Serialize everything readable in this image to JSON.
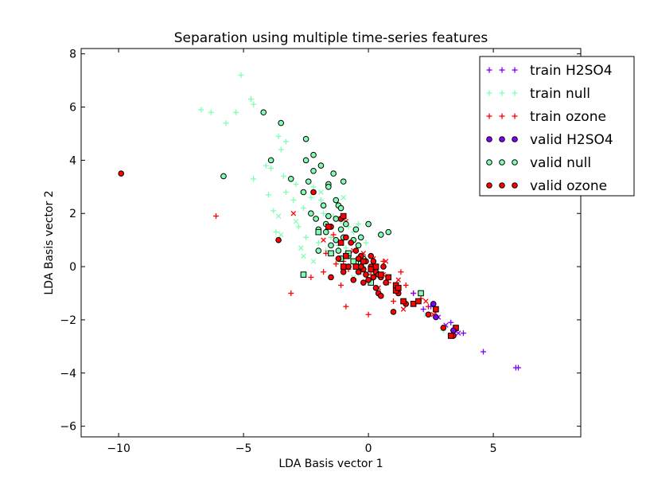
{
  "chart_data": {
    "type": "scatter",
    "title": "Separation using multiple time-series features",
    "xlabel": "LDA Basis vector 1",
    "ylabel": "LDA Basis vector 2",
    "xlim": [
      -11.5,
      8.5
    ],
    "ylim": [
      -6.4,
      8.2
    ],
    "xticks": [
      -10,
      -5,
      0,
      5
    ],
    "xtick_labels": [
      "−10",
      "−5",
      "0",
      "5"
    ],
    "yticks": [
      -6,
      -4,
      -2,
      0,
      2,
      4,
      6,
      8
    ],
    "ytick_labels": [
      "−6",
      "−4",
      "−2",
      "0",
      "2",
      "4",
      "6",
      "8"
    ],
    "grid": false,
    "legend_position": "top-right",
    "colors": {
      "h2so4": "#7f00ff",
      "null": "#80ffb4",
      "ozone": "#ff0000"
    },
    "legend": [
      {
        "label": "train H2SO4",
        "marker": "plus",
        "color": "#7f00ff"
      },
      {
        "label": "train null",
        "marker": "plus",
        "color": "#80ffb4"
      },
      {
        "label": "train ozone",
        "marker": "plus",
        "color": "#ff0000"
      },
      {
        "label": "valid H2SO4",
        "marker": "circle",
        "color": "#7f00ff"
      },
      {
        "label": "valid null",
        "marker": "circle",
        "color": "#80ffb4"
      },
      {
        "label": "valid ozone",
        "marker": "circle",
        "color": "#ff0000"
      }
    ],
    "series": [
      {
        "name": "train null",
        "marker": "plus",
        "color": "#80ffb4",
        "points": [
          [
            -5.1,
            7.2
          ],
          [
            -4.7,
            6.3
          ],
          [
            -4.6,
            6.1
          ],
          [
            -6.7,
            5.9
          ],
          [
            -6.3,
            5.8
          ],
          [
            -5.3,
            5.8
          ],
          [
            -5.7,
            5.4
          ],
          [
            -3.6,
            4.9
          ],
          [
            -3.3,
            4.7
          ],
          [
            -3.5,
            4.4
          ],
          [
            -4.1,
            3.8
          ],
          [
            -3.9,
            3.7
          ],
          [
            -4.6,
            3.3
          ],
          [
            -3.4,
            3.4
          ],
          [
            -2.9,
            3.1
          ],
          [
            -2.2,
            3.0
          ],
          [
            -3.0,
            2.5
          ],
          [
            -2.3,
            2.6
          ],
          [
            -2.6,
            2.2
          ],
          [
            -1.9,
            2.5
          ],
          [
            -1.8,
            2.0
          ],
          [
            -1.4,
            1.9
          ],
          [
            -1.1,
            1.7
          ],
          [
            -0.8,
            1.5
          ],
          [
            -0.4,
            1.6
          ],
          [
            -3.7,
            1.3
          ],
          [
            -2.5,
            1.1
          ],
          [
            -2.0,
            0.9
          ],
          [
            -1.7,
            0.6
          ],
          [
            -1.2,
            0.8
          ],
          [
            -0.9,
            0.7
          ],
          [
            -0.7,
            0.3
          ],
          [
            -0.4,
            0.2
          ],
          [
            -0.2,
            0.0
          ],
          [
            0.2,
            -0.1
          ],
          [
            -1.5,
            1.1
          ],
          [
            -2.8,
            1.5
          ],
          [
            -3.3,
            2.8
          ],
          [
            -3.8,
            2.1
          ],
          [
            -4.0,
            2.7
          ],
          [
            -0.1,
            0.9
          ],
          [
            -0.6,
            1.3
          ],
          [
            3.0,
            -2.4
          ]
        ]
      },
      {
        "name": "train null x",
        "marker": "x",
        "color": "#80ffb4",
        "points": [
          [
            -3.6,
            1.9
          ],
          [
            -3.5,
            1.2
          ],
          [
            -2.7,
            0.7
          ],
          [
            -2.6,
            0.4
          ],
          [
            -2.2,
            0.2
          ],
          [
            -1.9,
            2.8
          ],
          [
            -1.5,
            1.5
          ],
          [
            -0.9,
            0.5
          ],
          [
            -0.6,
            -0.4
          ],
          [
            -0.3,
            0.4
          ],
          [
            -1.2,
            0.2
          ],
          [
            0.1,
            -0.2
          ],
          [
            2.3,
            -1.8
          ],
          [
            -1.0,
            2.6
          ],
          [
            -2.9,
            1.7
          ]
        ]
      },
      {
        "name": "train ozone",
        "marker": "plus",
        "color": "#ff0000",
        "points": [
          [
            -6.1,
            1.9
          ],
          [
            -3.1,
            -1.0
          ],
          [
            -1.7,
            0.5
          ],
          [
            -1.3,
            0.1
          ],
          [
            -1.0,
            0.2
          ],
          [
            -0.8,
            -0.1
          ],
          [
            -0.5,
            0.1
          ],
          [
            -0.3,
            -0.2
          ],
          [
            -0.1,
            0.2
          ],
          [
            0.1,
            -0.3
          ],
          [
            0.3,
            -0.1
          ],
          [
            0.5,
            -0.4
          ],
          [
            0.8,
            -0.6
          ],
          [
            1.2,
            -0.8
          ],
          [
            1.5,
            -0.7
          ],
          [
            1.8,
            -1.0
          ],
          [
            2.1,
            -1.2
          ],
          [
            2.4,
            -1.5
          ],
          [
            2.7,
            -1.7
          ],
          [
            1.0,
            -1.3
          ],
          [
            -0.9,
            -1.5
          ],
          [
            0.0,
            -1.8
          ],
          [
            -2.3,
            -0.4
          ],
          [
            -1.8,
            -0.2
          ],
          [
            -2.0,
            0.6
          ],
          [
            -1.1,
            -0.7
          ],
          [
            -0.6,
            -0.5
          ],
          [
            0.6,
            0.2
          ],
          [
            1.3,
            -0.2
          ],
          [
            -1.4,
            1.2
          ]
        ]
      },
      {
        "name": "train ozone x",
        "marker": "x",
        "color": "#ff0000",
        "points": [
          [
            -3.0,
            2.0
          ],
          [
            -0.6,
            0.6
          ],
          [
            -0.2,
            0.5
          ],
          [
            0.2,
            0.3
          ],
          [
            0.6,
            -0.3
          ],
          [
            0.7,
            0.2
          ],
          [
            1.2,
            -0.5
          ],
          [
            1.4,
            -1.6
          ],
          [
            2.3,
            -1.3
          ],
          [
            2.6,
            -1.8
          ],
          [
            -0.9,
            1.7
          ],
          [
            -1.8,
            1.0
          ],
          [
            0.4,
            -0.8
          ]
        ]
      },
      {
        "name": "train H2SO4",
        "marker": "plus",
        "color": "#7f00ff",
        "points": [
          [
            1.8,
            -1.0
          ],
          [
            2.5,
            -1.5
          ],
          [
            3.0,
            -2.3
          ],
          [
            3.3,
            -2.1
          ],
          [
            3.5,
            -2.4
          ],
          [
            3.8,
            -2.5
          ],
          [
            4.6,
            -3.2
          ],
          [
            5.9,
            -3.8
          ],
          [
            6.0,
            -3.8
          ],
          [
            2.2,
            -1.6
          ]
        ]
      },
      {
        "name": "train H2SO4 x",
        "marker": "x",
        "color": "#7f00ff",
        "points": [
          [
            3.1,
            -2.2
          ],
          [
            3.6,
            -2.5
          ],
          [
            2.8,
            -1.9
          ]
        ]
      },
      {
        "name": "valid null",
        "marker": "circle",
        "color": "#80ffb4",
        "points": [
          [
            -4.2,
            5.8
          ],
          [
            -3.5,
            5.4
          ],
          [
            -2.5,
            4.8
          ],
          [
            -5.8,
            3.4
          ],
          [
            -3.9,
            4.0
          ],
          [
            -2.2,
            4.2
          ],
          [
            -2.5,
            4.0
          ],
          [
            -1.9,
            3.8
          ],
          [
            -2.2,
            3.6
          ],
          [
            -1.4,
            3.5
          ],
          [
            -1.0,
            3.2
          ],
          [
            -2.4,
            3.2
          ],
          [
            -1.6,
            3.1
          ],
          [
            -1.6,
            3.0
          ],
          [
            -2.6,
            2.8
          ],
          [
            -3.1,
            3.3
          ],
          [
            -1.3,
            2.5
          ],
          [
            -1.2,
            2.3
          ],
          [
            -1.8,
            2.3
          ],
          [
            -1.1,
            2.2
          ],
          [
            -1.6,
            1.9
          ],
          [
            -1.3,
            1.8
          ],
          [
            -0.9,
            1.6
          ],
          [
            -0.5,
            1.4
          ],
          [
            -1.7,
            1.6
          ],
          [
            -2.0,
            1.4
          ],
          [
            -1.7,
            1.3
          ],
          [
            -1.0,
            1.1
          ],
          [
            -0.6,
            1.0
          ],
          [
            -0.4,
            0.8
          ],
          [
            0.0,
            1.6
          ],
          [
            0.5,
            1.2
          ],
          [
            -0.3,
            1.1
          ],
          [
            -1.3,
            1.0
          ],
          [
            -0.8,
            0.4
          ],
          [
            -1.2,
            0.6
          ],
          [
            -2.0,
            0.6
          ],
          [
            0.8,
            1.3
          ],
          [
            -1.5,
            0.8
          ],
          [
            -2.1,
            1.8
          ],
          [
            -2.3,
            2.0
          ],
          [
            -1.1,
            1.4
          ],
          [
            -0.2,
            0.3
          ]
        ]
      },
      {
        "name": "valid null sq",
        "marker": "square",
        "color": "#80ffb4",
        "points": [
          [
            -2.6,
            -0.3
          ],
          [
            -2.0,
            1.3
          ],
          [
            -1.5,
            0.5
          ],
          [
            -1.1,
            0.3
          ],
          [
            -0.8,
            0.5
          ],
          [
            -0.6,
            0.2
          ],
          [
            -0.3,
            0.1
          ],
          [
            0.1,
            -0.6
          ],
          [
            2.1,
            -1.0
          ]
        ]
      },
      {
        "name": "valid ozone",
        "marker": "circle",
        "color": "#ff0000",
        "points": [
          [
            -9.9,
            3.5
          ],
          [
            -3.6,
            1.0
          ],
          [
            -2.2,
            2.8
          ],
          [
            -1.1,
            1.8
          ],
          [
            -1.5,
            1.5
          ],
          [
            -0.9,
            1.1
          ],
          [
            -0.7,
            0.9
          ],
          [
            -0.5,
            0.6
          ],
          [
            -0.3,
            0.4
          ],
          [
            -0.1,
            0.2
          ],
          [
            0.1,
            0.0
          ],
          [
            0.3,
            -0.2
          ],
          [
            0.5,
            -0.4
          ],
          [
            0.7,
            -0.6
          ],
          [
            0.2,
            0.2
          ],
          [
            -0.2,
            -0.1
          ],
          [
            0.4,
            -0.3
          ],
          [
            -0.4,
            0.3
          ],
          [
            0.0,
            -0.5
          ],
          [
            -0.2,
            -0.6
          ],
          [
            0.3,
            -0.8
          ],
          [
            0.4,
            -1.0
          ],
          [
            0.5,
            -1.1
          ],
          [
            1.0,
            -1.7
          ],
          [
            1.5,
            -1.4
          ],
          [
            1.2,
            -1.0
          ],
          [
            2.4,
            -1.8
          ],
          [
            3.0,
            -2.3
          ],
          [
            3.4,
            -2.6
          ],
          [
            -1.5,
            -0.4
          ],
          [
            -1.0,
            -0.2
          ],
          [
            -0.6,
            -0.5
          ],
          [
            -0.8,
            0.0
          ],
          [
            0.6,
            0.0
          ],
          [
            -1.2,
            0.3
          ],
          [
            -0.4,
            -0.2
          ],
          [
            0.1,
            0.4
          ],
          [
            -0.1,
            -0.3
          ],
          [
            0.2,
            -0.4
          ],
          [
            -0.3,
            0.0
          ]
        ]
      },
      {
        "name": "valid ozone sq",
        "marker": "square",
        "color": "#ff0000",
        "points": [
          [
            -1.0,
            1.9
          ],
          [
            -1.6,
            1.5
          ],
          [
            -1.1,
            0.9
          ],
          [
            -0.9,
            0.4
          ],
          [
            -1.0,
            0.0
          ],
          [
            -0.5,
            0.0
          ],
          [
            -0.2,
            0.2
          ],
          [
            0.1,
            -0.1
          ],
          [
            0.3,
            0.0
          ],
          [
            0.5,
            -0.3
          ],
          [
            0.8,
            -0.4
          ],
          [
            1.1,
            -0.7
          ],
          [
            1.1,
            -0.9
          ],
          [
            1.4,
            -1.3
          ],
          [
            1.8,
            -1.4
          ],
          [
            2.0,
            -1.3
          ],
          [
            2.7,
            -1.6
          ],
          [
            3.5,
            -2.3
          ],
          [
            3.3,
            -2.6
          ],
          [
            1.2,
            -0.8
          ]
        ]
      },
      {
        "name": "valid H2SO4",
        "marker": "circle",
        "color": "#7f00ff",
        "points": [
          [
            2.6,
            -1.4
          ],
          [
            2.7,
            -1.9
          ],
          [
            3.4,
            -2.4
          ]
        ]
      }
    ]
  }
}
